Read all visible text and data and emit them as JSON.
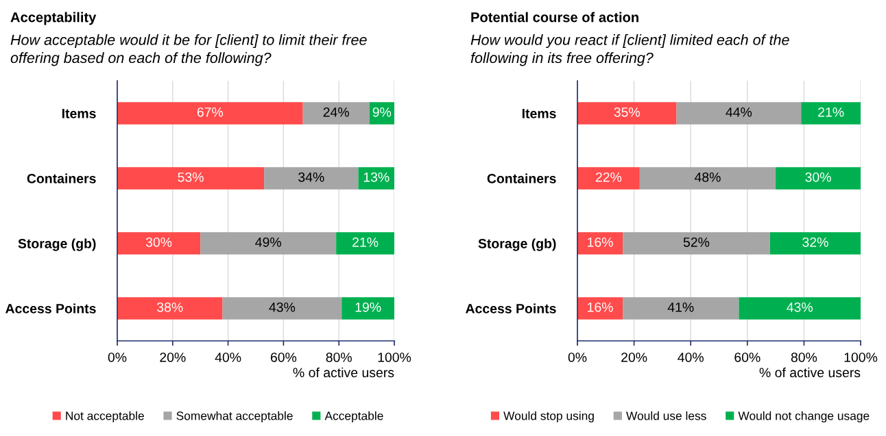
{
  "chart_data": [
    {
      "type": "bar",
      "orientation": "horizontal",
      "stacked": true,
      "title": "Acceptability",
      "subtitle": "How acceptable would it be for [client] to limit their free\noffering based on each of the following?",
      "xlabel": "% of active users",
      "categories": [
        "Items",
        "Containers",
        "Storage (gb)",
        "Access Points"
      ],
      "series": [
        {
          "name": "Not acceptable",
          "color": "#ff4b4b",
          "values": [
            67,
            53,
            30,
            38
          ],
          "value_labels": [
            "67%",
            "53%",
            "30%",
            "38%"
          ]
        },
        {
          "name": "Somewhat acceptable",
          "color": "#a6a6a6",
          "values": [
            24,
            34,
            49,
            43
          ],
          "value_labels": [
            "24%",
            "34%",
            "49%",
            "43%"
          ]
        },
        {
          "name": "Acceptable",
          "color": "#00b050",
          "values": [
            9,
            13,
            21,
            19
          ],
          "value_labels": [
            "9%",
            "13%",
            "21%",
            "19%"
          ]
        }
      ],
      "xlim": [
        0,
        100
      ],
      "xticks": [
        {
          "value": 0,
          "label": "0%"
        },
        {
          "value": 20,
          "label": "20%"
        },
        {
          "value": 40,
          "label": "40%"
        },
        {
          "value": 60,
          "label": "60%"
        },
        {
          "value": 80,
          "label": "80%"
        },
        {
          "value": 100,
          "label": "100%"
        }
      ],
      "grid": "x",
      "legend": "bottom"
    },
    {
      "type": "bar",
      "orientation": "horizontal",
      "stacked": true,
      "title": "Potential course of action",
      "subtitle": "How would you react if [client] limited each of the\nfollowing in its free offering?",
      "xlabel": "% of active users",
      "categories": [
        "Items",
        "Containers",
        "Storage (gb)",
        "Access Points"
      ],
      "series": [
        {
          "name": "Would stop using",
          "color": "#ff4b4b",
          "values": [
            35,
            22,
            16,
            16
          ],
          "value_labels": [
            "35%",
            "22%",
            "16%",
            "16%"
          ]
        },
        {
          "name": "Would use less",
          "color": "#a6a6a6",
          "values": [
            44,
            48,
            52,
            41
          ],
          "value_labels": [
            "44%",
            "48%",
            "52%",
            "41%"
          ]
        },
        {
          "name": "Would not change usage",
          "color": "#00b050",
          "values": [
            21,
            30,
            32,
            43
          ],
          "value_labels": [
            "21%",
            "30%",
            "32%",
            "43%"
          ]
        }
      ],
      "xlim": [
        0,
        100
      ],
      "xticks": [
        {
          "value": 0,
          "label": "0%"
        },
        {
          "value": 20,
          "label": "20%"
        },
        {
          "value": 40,
          "label": "40%"
        },
        {
          "value": 60,
          "label": "60%"
        },
        {
          "value": 80,
          "label": "80%"
        },
        {
          "value": 100,
          "label": "100%"
        }
      ],
      "grid": "x",
      "legend": "bottom"
    }
  ]
}
